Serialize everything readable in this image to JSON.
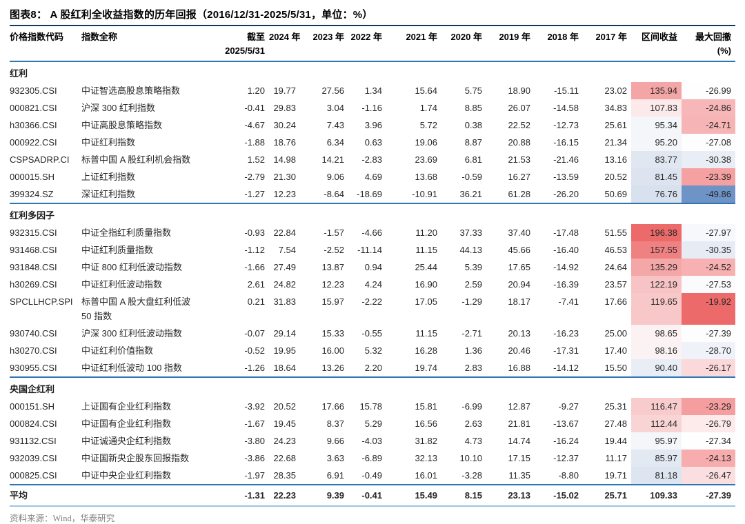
{
  "title": "图表8：  A 股红利全收益指数的历年回报（2016/12/31-2025/5/31，单位：%）",
  "header": {
    "col_code": "价格指数代码",
    "col_name": "指数全称",
    "col_cutoff_line1": "截至",
    "col_cutoff_line2": "2025/5/31",
    "years": [
      "2024 年",
      "2023 年",
      "2022 年",
      "2021 年",
      "2020 年",
      "2019 年",
      "2018 年",
      "2017 年"
    ],
    "col_interval": "区间收益",
    "col_drawdown_line1": "最大回撤",
    "col_drawdown_line2": "(%)"
  },
  "sections": [
    {
      "label": "红利",
      "rows": [
        {
          "code": "932305.CSI",
          "name": "中证智选高股息策略指数",
          "values": [
            "1.20",
            "19.77",
            "27.56",
            "1.34",
            "15.64",
            "5.75",
            "18.90",
            "-15.11",
            "23.02"
          ],
          "interval": "135.94",
          "drawdown": "-26.99",
          "interval_bg": "#f4a6a6",
          "drawdown_bg": "#fefeff"
        },
        {
          "code": "000821.CSI",
          "name": "沪深 300 红利指数",
          "values": [
            "-0.41",
            "29.83",
            "3.04",
            "-1.16",
            "1.74",
            "8.85",
            "26.07",
            "-14.58",
            "34.83"
          ],
          "interval": "107.83",
          "drawdown": "-24.86",
          "interval_bg": "#fce9ea",
          "drawdown_bg": "#f7b6b7"
        },
        {
          "code": "h30366.CSI",
          "name": "中证高股息策略指数",
          "values": [
            "-4.67",
            "30.24",
            "7.43",
            "3.96",
            "5.72",
            "0.38",
            "22.52",
            "-12.73",
            "25.61"
          ],
          "interval": "95.34",
          "drawdown": "-24.71",
          "interval_bg": "#f4f6fa",
          "drawdown_bg": "#f7b4b5"
        },
        {
          "code": "000922.CSI",
          "name": "中证红利指数",
          "values": [
            "-1.88",
            "18.76",
            "6.34",
            "0.63",
            "19.06",
            "8.87",
            "20.88",
            "-16.15",
            "21.34"
          ],
          "interval": "95.20",
          "drawdown": "-27.08",
          "interval_bg": "#f4f6fa",
          "drawdown_bg": "#fdfdfe"
        },
        {
          "code": "CSPSADRP.CI",
          "name": "标普中国 A 股红利机会指数",
          "values": [
            "1.52",
            "14.98",
            "14.21",
            "-2.83",
            "23.69",
            "6.81",
            "21.53",
            "-21.46",
            "13.16"
          ],
          "interval": "83.77",
          "drawdown": "-30.38",
          "interval_bg": "#e0e7f1",
          "drawdown_bg": "#e9edf5"
        },
        {
          "code": "000015.SH",
          "name": "上证红利指数",
          "values": [
            "-2.79",
            "21.30",
            "9.06",
            "4.69",
            "13.68",
            "-0.59",
            "16.27",
            "-13.59",
            "20.52"
          ],
          "interval": "81.45",
          "drawdown": "-23.39",
          "interval_bg": "#dde4f0",
          "drawdown_bg": "#f5a0a1"
        },
        {
          "code": "399324.SZ",
          "name": "深证红利指数",
          "values": [
            "-1.27",
            "12.23",
            "-8.64",
            "-18.69",
            "-10.91",
            "36.21",
            "61.28",
            "-26.20",
            "50.69"
          ],
          "interval": "76.76",
          "drawdown": "-49.86",
          "interval_bg": "#d8e1ee",
          "drawdown_bg": "#6e93c7"
        }
      ]
    },
    {
      "label": "红利多因子",
      "rows": [
        {
          "code": "932315.CSI",
          "name": "中证全指红利质量指数",
          "values": [
            "-0.93",
            "22.84",
            "-1.57",
            "-4.66",
            "11.20",
            "37.33",
            "37.40",
            "-17.48",
            "51.55"
          ],
          "interval": "196.38",
          "drawdown": "-27.97",
          "interval_bg": "#ec6a6a",
          "drawdown_bg": "#f6f8fb"
        },
        {
          "code": "931468.CSI",
          "name": "中证红利质量指数",
          "values": [
            "-1.12",
            "7.54",
            "-2.52",
            "-11.14",
            "11.15",
            "44.13",
            "45.66",
            "-16.40",
            "46.53"
          ],
          "interval": "157.55",
          "drawdown": "-30.35",
          "interval_bg": "#f08182",
          "drawdown_bg": "#e6ebf4"
        },
        {
          "code": "931848.CSI",
          "name": "中证 800 红利低波动指数",
          "values": [
            "-1.66",
            "27.49",
            "13.87",
            "0.94",
            "25.44",
            "5.39",
            "17.65",
            "-14.92",
            "24.64"
          ],
          "interval": "135.29",
          "drawdown": "-24.52",
          "interval_bg": "#f4a7a7",
          "drawdown_bg": "#f8b1b2"
        },
        {
          "code": "h30269.CSI",
          "name": "中证红利低波动指数",
          "values": [
            "2.61",
            "24.82",
            "12.23",
            "4.24",
            "16.90",
            "2.59",
            "20.94",
            "-16.39",
            "23.57"
          ],
          "interval": "122.19",
          "drawdown": "-27.53",
          "interval_bg": "#f7c3c4",
          "drawdown_bg": "#fbfbfd"
        },
        {
          "code": "SPCLLHCP.SPI",
          "name": "标普中国 A 股大盘红利低波",
          "name2": "50 指数",
          "values": [
            "0.21",
            "31.83",
            "15.97",
            "-2.22",
            "17.05",
            "-1.29",
            "18.17",
            "-7.41",
            "17.66"
          ],
          "interval": "119.65",
          "drawdown": "-19.92",
          "interval_bg": "#f8c8c9",
          "drawdown_bg": "#ed6a6a"
        },
        {
          "code": "930740.CSI",
          "name": "沪深 300 红利低波动指数",
          "values": [
            "-0.07",
            "29.14",
            "15.33",
            "-0.55",
            "11.15",
            "-2.71",
            "20.13",
            "-16.23",
            "25.00"
          ],
          "interval": "98.65",
          "drawdown": "-27.39",
          "interval_bg": "#fcf2f3",
          "drawdown_bg": "#fdfdfe"
        },
        {
          "code": "h30270.CSI",
          "name": "中证红利价值指数",
          "values": [
            "-0.52",
            "19.95",
            "16.00",
            "5.32",
            "16.28",
            "1.36",
            "20.46",
            "-17.31",
            "17.40"
          ],
          "interval": "98.16",
          "drawdown": "-28.70",
          "interval_bg": "#fbf2f3",
          "drawdown_bg": "#eff2f8"
        },
        {
          "code": "930955.CSI",
          "name": "中证红利低波动 100 指数",
          "values": [
            "-1.26",
            "18.64",
            "13.26",
            "2.20",
            "19.74",
            "2.83",
            "16.88",
            "-14.12",
            "15.50"
          ],
          "interval": "90.40",
          "drawdown": "-26.17",
          "interval_bg": "#e9eef6",
          "drawdown_bg": "#fbd9da"
        }
      ]
    },
    {
      "label": "央国企红利",
      "rows": [
        {
          "code": "000151.SH",
          "name": "上证国有企业红利指数",
          "values": [
            "-3.92",
            "20.52",
            "17.66",
            "15.78",
            "15.81",
            "-6.99",
            "12.87",
            "-9.27",
            "25.31"
          ],
          "interval": "116.47",
          "drawdown": "-23.29",
          "interval_bg": "#f8cccd",
          "drawdown_bg": "#f59e9f"
        },
        {
          "code": "000824.CSI",
          "name": "中证国有企业红利指数",
          "values": [
            "-1.67",
            "19.45",
            "8.37",
            "5.29",
            "16.56",
            "2.63",
            "21.81",
            "-13.67",
            "27.48"
          ],
          "interval": "112.44",
          "drawdown": "-26.79",
          "interval_bg": "#f9d4d5",
          "drawdown_bg": "#fdeaeb"
        },
        {
          "code": "931132.CSI",
          "name": "中证诚通央企红利指数",
          "values": [
            "-3.80",
            "24.23",
            "9.66",
            "-4.03",
            "31.82",
            "4.73",
            "14.74",
            "-16.24",
            "19.44"
          ],
          "interval": "95.97",
          "drawdown": "-27.34",
          "interval_bg": "#f4f6fa",
          "drawdown_bg": "#fefeff"
        },
        {
          "code": "932039.CSI",
          "name": "中证国新央企股东回报指数",
          "values": [
            "-3.86",
            "22.68",
            "3.63",
            "-6.89",
            "32.13",
            "10.10",
            "17.15",
            "-12.37",
            "11.17"
          ],
          "interval": "85.97",
          "drawdown": "-24.13",
          "interval_bg": "#e3e9f2",
          "drawdown_bg": "#f7acad"
        },
        {
          "code": "000825.CSI",
          "name": "中证中央企业红利指数",
          "values": [
            "-1.97",
            "28.35",
            "6.91",
            "-0.49",
            "16.01",
            "-3.28",
            "11.35",
            "-8.80",
            "19.71"
          ],
          "interval": "81.18",
          "drawdown": "-26.47",
          "interval_bg": "#dde5f0",
          "drawdown_bg": "#fbdedf"
        }
      ]
    }
  ],
  "average": {
    "label": "平均",
    "values": [
      "-1.31",
      "22.23",
      "9.39",
      "-0.41",
      "15.49",
      "8.15",
      "23.13",
      "-15.02",
      "25.71"
    ],
    "interval": "109.33",
    "drawdown": "-27.39"
  },
  "source": "资料来源：Wind，华泰研究",
  "colors": {
    "title_rule": "#17365d",
    "table_rule": "#2e75b6",
    "bottom_rule": "#9dc3e6",
    "heat_high": "#ec6a6a",
    "heat_low": "#6e93c7"
  }
}
